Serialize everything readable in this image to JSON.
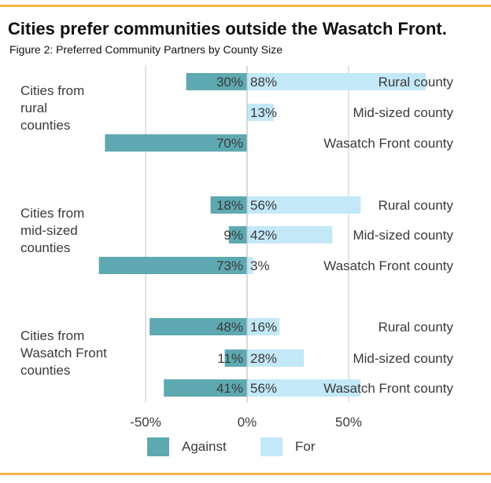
{
  "colors": {
    "rule": "#f5b342",
    "against": "#5ea9b1",
    "for": "#c3e8f7",
    "grid": "#d0d0d0",
    "text": "#3a3a3a",
    "title": "#111111"
  },
  "chart_data": {
    "type": "bar",
    "orientation": "horizontal-diverging",
    "title": "Cities prefer communities outside the Wasatch Front.",
    "subtitle": "Figure 2: Preferred Community Partners by County Size",
    "xlim": [
      -60,
      60
    ],
    "xticks": [
      {
        "value": -50,
        "label": "-50%"
      },
      {
        "value": 0,
        "label": "0%"
      },
      {
        "value": 50,
        "label": "50%"
      }
    ],
    "series": [
      {
        "name": "Against"
      },
      {
        "name": "For"
      }
    ],
    "legend": "bottom",
    "groups": [
      {
        "label": [
          "Cities from",
          "rural",
          "counties"
        ],
        "rows": [
          {
            "category": "Rural county",
            "against": 30,
            "for": 88,
            "against_label": "30%",
            "for_label": "88%"
          },
          {
            "category": "Mid-sized county",
            "against": 0,
            "for": 13,
            "against_label": "",
            "for_label": "13%"
          },
          {
            "category": "Wasatch Front county",
            "against": 70,
            "for": 0,
            "against_label": "70%",
            "for_label": ""
          }
        ]
      },
      {
        "label": [
          "Cities from",
          "mid-sized",
          "counties"
        ],
        "rows": [
          {
            "category": "Rural county",
            "against": 18,
            "for": 56,
            "against_label": "18%",
            "for_label": "56%"
          },
          {
            "category": "Mid-sized county",
            "against": 9,
            "for": 42,
            "against_label": "9%",
            "for_label": "42%"
          },
          {
            "category": "Wasatch Front county",
            "against": 73,
            "for": 3,
            "against_label": "73%",
            "for_label": "3%"
          }
        ]
      },
      {
        "label": [
          "Cities from",
          "Wasatch Front",
          "counties"
        ],
        "rows": [
          {
            "category": "Rural county",
            "against": 48,
            "for": 16,
            "against_label": "48%",
            "for_label": "16%"
          },
          {
            "category": "Mid-sized county",
            "against": 11,
            "for": 28,
            "against_label": "11%",
            "for_label": "28%"
          },
          {
            "category": "Wasatch Front county",
            "against": 41,
            "for": 56,
            "against_label": "41%",
            "for_label": "56%"
          }
        ]
      }
    ]
  }
}
